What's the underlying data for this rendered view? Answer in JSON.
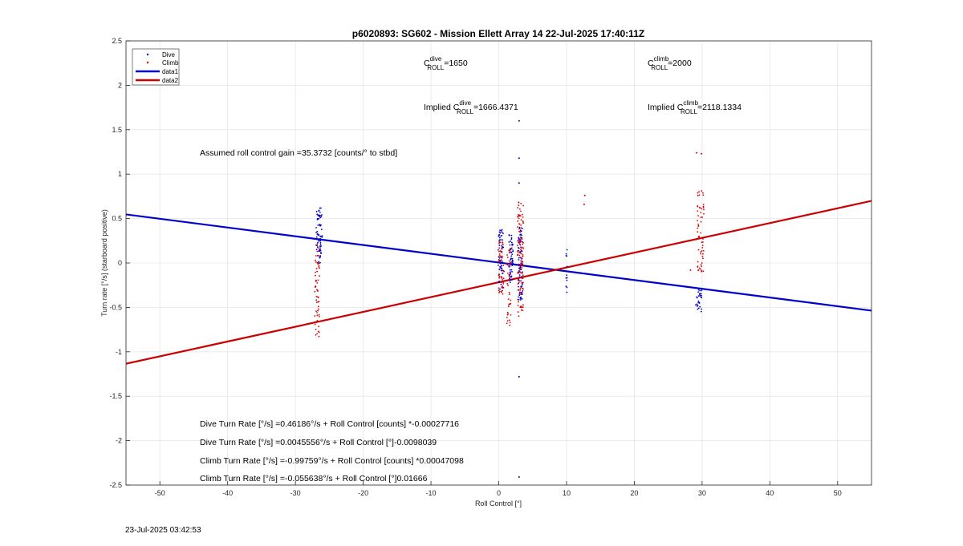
{
  "chart_data": {
    "type": "scatter",
    "title": "p6020893: SG602 - Mission Ellett Array 14 22-Jul-2025 17:40:11Z",
    "xlabel": "Roll Control [°]",
    "ylabel": "Turn rate [°/s] (starboard positive)",
    "xlim": [
      -55,
      55
    ],
    "ylim": [
      -2.5,
      2.5
    ],
    "xticks": [
      -50,
      -40,
      -30,
      -20,
      -10,
      0,
      10,
      20,
      30,
      40,
      50
    ],
    "yticks": [
      -2.5,
      -2,
      -1.5,
      -1,
      -0.5,
      0,
      0.5,
      1,
      1.5,
      2,
      2.5
    ],
    "xtick_labels": [
      "-50",
      "-40",
      "-30",
      "-20",
      "-10",
      "0",
      "10",
      "20",
      "30",
      "40",
      "50"
    ],
    "ytick_labels": [
      "-2.5",
      "-2",
      "-1.5",
      "-1",
      "-0.5",
      "0",
      "0.5",
      "1",
      "1.5",
      "2",
      "2.5"
    ],
    "grid": true,
    "legend_position": "top-left",
    "series": [
      {
        "name": "Dive",
        "kind": "points",
        "color": "#0000cc",
        "clusters": [
          {
            "x": -26.5,
            "x_spread": 0.9,
            "y_min": 0.0,
            "y_max": 0.62,
            "count": 70
          },
          {
            "x": 0.3,
            "x_spread": 0.8,
            "y_min": -0.3,
            "y_max": 0.38,
            "count": 60
          },
          {
            "x": 1.8,
            "x_spread": 0.6,
            "y_min": -0.22,
            "y_max": 0.32,
            "count": 50
          },
          {
            "x": 3.2,
            "x_spread": 0.7,
            "y_min": -0.42,
            "y_max": 0.42,
            "count": 90
          },
          {
            "x": 10.0,
            "x_spread": 0.2,
            "y_min": -0.34,
            "y_max": 0.15,
            "count": 12
          },
          {
            "x": 29.5,
            "x_spread": 0.9,
            "y_min": -0.55,
            "y_max": -0.3,
            "count": 28
          }
        ],
        "points": [
          {
            "x": 3.0,
            "y": 1.6
          },
          {
            "x": 3.0,
            "y": 1.18
          },
          {
            "x": 3.0,
            "y": 0.9
          },
          {
            "x": 3.0,
            "y": -1.28
          },
          {
            "x": 3.0,
            "y": -2.41
          }
        ]
      },
      {
        "name": "Climb",
        "kind": "points",
        "color": "#dd0000",
        "clusters": [
          {
            "x": -26.8,
            "x_spread": 0.7,
            "y_min": -0.84,
            "y_max": 0.25,
            "count": 60
          },
          {
            "x": 0.4,
            "x_spread": 0.8,
            "y_min": -0.35,
            "y_max": 0.3,
            "count": 50
          },
          {
            "x": 1.5,
            "x_spread": 0.6,
            "y_min": -0.72,
            "y_max": 0.2,
            "count": 40
          },
          {
            "x": 3.2,
            "x_spread": 0.9,
            "y_min": -0.6,
            "y_max": 0.72,
            "count": 110
          },
          {
            "x": 29.8,
            "x_spread": 1.0,
            "y_min": -0.1,
            "y_max": 0.84,
            "count": 60
          }
        ],
        "points": [
          {
            "x": 29.2,
            "y": 1.24
          },
          {
            "x": 29.9,
            "y": 1.23
          },
          {
            "x": 12.7,
            "y": 0.76
          },
          {
            "x": 12.6,
            "y": 0.66
          },
          {
            "x": 28.3,
            "y": -0.08
          }
        ]
      },
      {
        "name": "data1",
        "kind": "line",
        "color": "#0000cc",
        "x": [
          -55,
          55
        ],
        "y": [
          0.5469,
          -0.5365
        ]
      },
      {
        "name": "data2",
        "kind": "line",
        "color": "#cc0000",
        "x": [
          -55,
          55
        ],
        "y": [
          -1.134,
          0.6993
        ]
      }
    ],
    "annotations": {
      "c_dive_label": "C",
      "c_dive_sup": "dive",
      "c_dive_sub": "ROLL",
      "c_dive_value": "=1650",
      "c_climb_label": "C",
      "c_climb_sup": "climb",
      "c_climb_sub": "ROLL",
      "c_climb_value": "=2000",
      "implied_dive_prefix": "Implied C",
      "implied_dive_sup": "dive",
      "implied_dive_sub": "ROLL",
      "implied_dive_value": "=1666.4371",
      "implied_climb_prefix": "Implied C",
      "implied_climb_sup": "climb",
      "implied_climb_sub": "ROLL",
      "implied_climb_value": "=2118.1334",
      "gain": "Assumed roll control gain =35.3732 [counts/° to stbd]",
      "eq1": "Dive Turn Rate [°/s] =0.46186°/s + Roll Control [counts] *-0.00027716",
      "eq2": "Dive Turn Rate [°/s] =0.0045556°/s + Roll Control [°]-0.0098039",
      "eq3": "Climb Turn Rate [°/s] =-0.99759°/s + Roll Control [counts] *0.00047098",
      "eq4": "Climb Turn Rate [°/s] =-0.055638°/s + Roll Control [°]0.01666"
    }
  },
  "footer_timestamp": "23-Jul-2025 03:42:53"
}
